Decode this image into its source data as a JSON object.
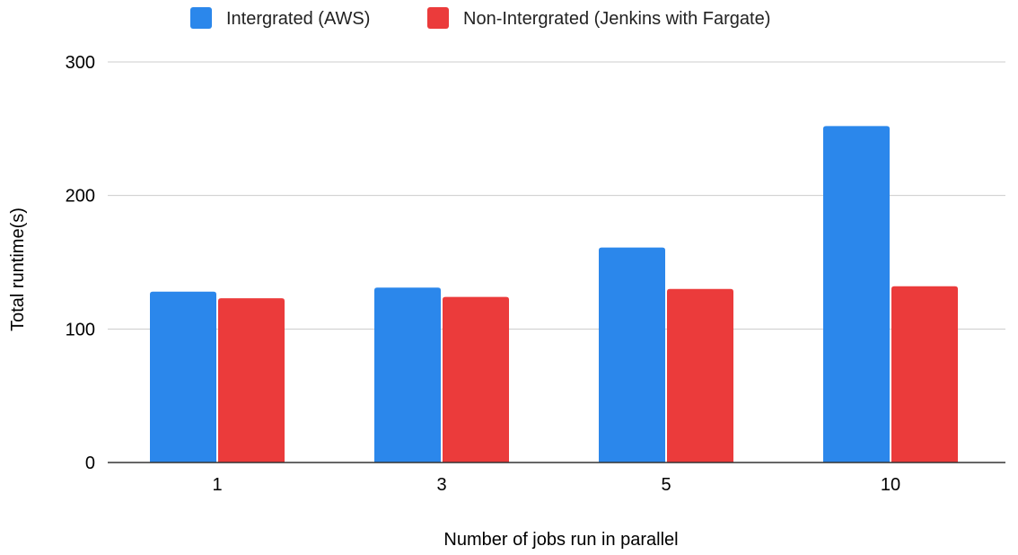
{
  "chart_data": {
    "type": "bar",
    "title": "",
    "xlabel": "Number of jobs run in parallel",
    "ylabel": "Total runtime(s)",
    "categories": [
      "1",
      "3",
      "5",
      "10"
    ],
    "series": [
      {
        "name": "Intergrated (AWS)",
        "color": "#2b87eb",
        "values": [
          128,
          131,
          161,
          252
        ]
      },
      {
        "name": "Non-Intergrated (Jenkins with Fargate)",
        "color": "#eb3b3b",
        "values": [
          123,
          124,
          130,
          132
        ]
      }
    ],
    "ylim": [
      0,
      300
    ],
    "yticks": [
      0,
      100,
      200,
      300
    ],
    "grid": true,
    "legend_position": "top"
  }
}
